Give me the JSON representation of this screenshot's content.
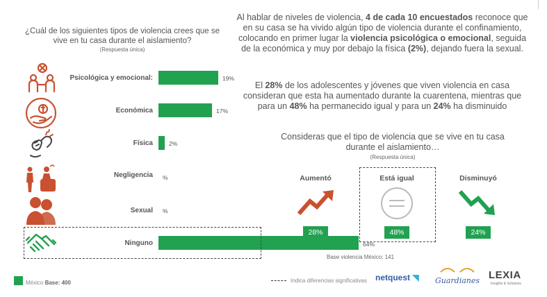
{
  "question_left": {
    "title": "¿Cuál de los siguientes tipos de violencia crees que se vive en tu casa durante el aislamiento?",
    "subtitle": "(Respuesta única)"
  },
  "colors": {
    "accent": "#22a150",
    "icon": "#c9512f",
    "trend_up": "#c9512f",
    "trend_down": "#22a150"
  },
  "icons": [
    "harm-people-icon",
    "money-hand-icon",
    "fist-hit-icon",
    "neglect-people-icon",
    "couple-icon",
    "handshake-icon"
  ],
  "chart_data": [
    {
      "type": "bar",
      "orientation": "horizontal",
      "categories": [
        "Psicológica y emocional:",
        "Económica",
        "Física",
        "Negligencia",
        "Sexual",
        "Ninguno"
      ],
      "values": [
        19,
        17,
        2,
        null,
        null,
        64
      ],
      "value_labels": [
        "19%",
        "17%",
        "2%",
        "%",
        "%",
        "64%"
      ],
      "xlim": [
        0,
        100
      ],
      "highlighted": "Ninguno",
      "title": "",
      "xlabel": "",
      "ylabel": ""
    },
    {
      "type": "table",
      "categories": [
        "Aumentó",
        "Está igual",
        "Disminuyó"
      ],
      "values": [
        28,
        48,
        24
      ],
      "value_labels": [
        "28%",
        "48%",
        "24%"
      ],
      "highlighted": "Está igual"
    }
  ],
  "paragraph1": {
    "t1": "Al hablar de niveles de violencia, ",
    "b1": "4 de cada 10 encuestados",
    "t2": " reconoce que en su casa se ha vivido algún tipo de violencia durante el confinamiento, colocando en primer lugar la ",
    "b2": "violencia psicológica o emocional",
    "t3": ", seguida de la económica y muy por debajo la física ",
    "b3": "(2%)",
    "t4": ", dejando fuera la sexual."
  },
  "paragraph2": {
    "t1": "El ",
    "b1": "28%",
    "t2": " de los adolescentes y jóvenes que viven violencia en casa consideran que esta ha aumentado durante la cuarentena, mientras que para un ",
    "b2": "48%",
    "t3": " ha permanecido igual y para un ",
    "b3": "24%",
    "t4": " ha disminuido"
  },
  "question_right": {
    "title": "Consideras que el tipo de violencia que se vive en tu casa durante el aislamiento…",
    "subtitle": "(Respuesta única)"
  },
  "base_violencia": "Base violencia México: 141",
  "legend": {
    "base_prefix": "México ",
    "base_bold": "Base: 400",
    "dashed_label": "Indica diferencias significativas"
  },
  "logos": {
    "netquest": "netquest",
    "guardianes": "Guardianes",
    "lexia": "LEXIA",
    "lexia_sub": "Insights & Solutions"
  }
}
